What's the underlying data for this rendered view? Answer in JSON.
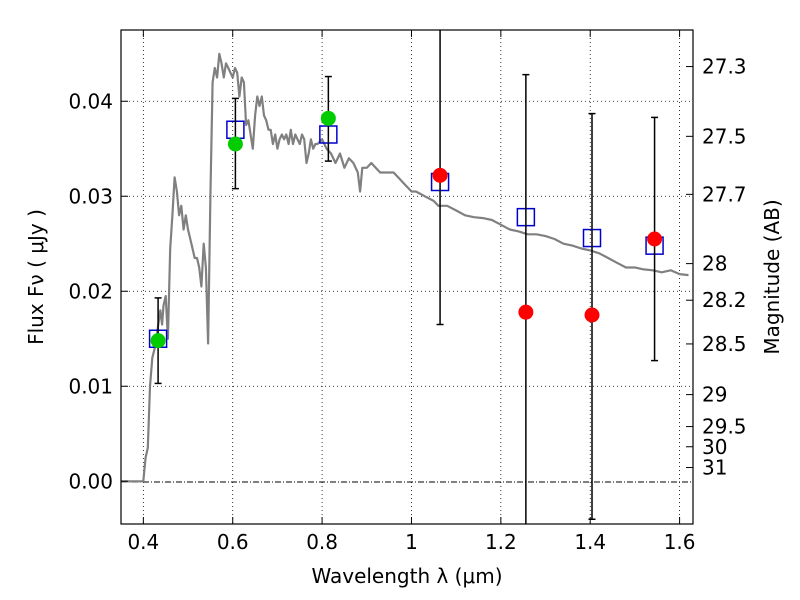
{
  "chart_data": {
    "type": "scatter",
    "xlabel": "Wavelength  λ (μm)",
    "ylabel_left": "Flux  Fν  ( μJy )",
    "ylabel_right": "Magnitude (AB)",
    "xlim": [
      0.35,
      1.63
    ],
    "ylim": [
      -0.0045,
      0.0475
    ],
    "xticks": [
      {
        "value": 0.4,
        "label": "0.4"
      },
      {
        "value": 0.6,
        "label": "0.6"
      },
      {
        "value": 0.8,
        "label": "0.8"
      },
      {
        "value": 1.0,
        "label": "1"
      },
      {
        "value": 1.2,
        "label": "1.2"
      },
      {
        "value": 1.4,
        "label": "1.4"
      },
      {
        "value": 1.6,
        "label": "1.6"
      }
    ],
    "yticks": [
      {
        "value": 0.0,
        "label": "0.00"
      },
      {
        "value": 0.01,
        "label": "0.01"
      },
      {
        "value": 0.02,
        "label": "0.02"
      },
      {
        "value": 0.03,
        "label": "0.03"
      },
      {
        "value": 0.04,
        "label": "0.04"
      }
    ],
    "mag_ticks": [
      {
        "value": 27.3,
        "label": "27.3"
      },
      {
        "value": 27.5,
        "label": "27.5"
      },
      {
        "value": 27.7,
        "label": "27.7"
      },
      {
        "value": 28,
        "label": "28"
      },
      {
        "value": 28.2,
        "label": "28.2"
      },
      {
        "value": 28.5,
        "label": "28.5"
      },
      {
        "value": 29,
        "label": "29"
      },
      {
        "value": 29.5,
        "label": "29.5"
      },
      {
        "value": 30,
        "label": "30"
      },
      {
        "value": 31,
        "label": "31"
      }
    ],
    "grid": true,
    "model_spectrum": {
      "color": "#808080",
      "points": [
        [
          0.35,
          0.0
        ],
        [
          0.4,
          0.0
        ],
        [
          0.405,
          0.0025
        ],
        [
          0.41,
          0.0035
        ],
        [
          0.415,
          0.01
        ],
        [
          0.42,
          0.013
        ],
        [
          0.428,
          0.0145
        ],
        [
          0.432,
          0.016
        ],
        [
          0.438,
          0.018
        ],
        [
          0.442,
          0.0165
        ],
        [
          0.445,
          0.0185
        ],
        [
          0.45,
          0.0195
        ],
        [
          0.455,
          0.015
        ],
        [
          0.46,
          0.0245
        ],
        [
          0.465,
          0.028
        ],
        [
          0.47,
          0.032
        ],
        [
          0.475,
          0.0305
        ],
        [
          0.48,
          0.028
        ],
        [
          0.485,
          0.029
        ],
        [
          0.49,
          0.0265
        ],
        [
          0.495,
          0.028
        ],
        [
          0.5,
          0.0265
        ],
        [
          0.505,
          0.0255
        ],
        [
          0.51,
          0.0245
        ],
        [
          0.515,
          0.0235
        ],
        [
          0.52,
          0.0235
        ],
        [
          0.525,
          0.0225
        ],
        [
          0.53,
          0.0205
        ],
        [
          0.535,
          0.025
        ],
        [
          0.54,
          0.0225
        ],
        [
          0.545,
          0.0145
        ],
        [
          0.55,
          0.03
        ],
        [
          0.555,
          0.042
        ],
        [
          0.56,
          0.0435
        ],
        [
          0.565,
          0.0425
        ],
        [
          0.57,
          0.045
        ],
        [
          0.575,
          0.044
        ],
        [
          0.58,
          0.0425
        ],
        [
          0.585,
          0.044
        ],
        [
          0.59,
          0.0435
        ],
        [
          0.595,
          0.043
        ],
        [
          0.6,
          0.0425
        ],
        [
          0.605,
          0.0435
        ],
        [
          0.61,
          0.043
        ],
        [
          0.615,
          0.0405
        ],
        [
          0.62,
          0.0425
        ],
        [
          0.625,
          0.042
        ],
        [
          0.63,
          0.0375
        ],
        [
          0.635,
          0.038
        ],
        [
          0.64,
          0.0365
        ],
        [
          0.645,
          0.035
        ],
        [
          0.65,
          0.0385
        ],
        [
          0.655,
          0.0405
        ],
        [
          0.66,
          0.0395
        ],
        [
          0.665,
          0.0405
        ],
        [
          0.67,
          0.0385
        ],
        [
          0.675,
          0.038
        ],
        [
          0.68,
          0.037
        ],
        [
          0.685,
          0.037
        ],
        [
          0.69,
          0.0355
        ],
        [
          0.695,
          0.0365
        ],
        [
          0.7,
          0.035
        ],
        [
          0.705,
          0.036
        ],
        [
          0.71,
          0.0365
        ],
        [
          0.715,
          0.036
        ],
        [
          0.72,
          0.0365
        ],
        [
          0.725,
          0.0355
        ],
        [
          0.73,
          0.037
        ],
        [
          0.735,
          0.0355
        ],
        [
          0.74,
          0.0365
        ],
        [
          0.745,
          0.036
        ],
        [
          0.75,
          0.0355
        ],
        [
          0.755,
          0.0365
        ],
        [
          0.76,
          0.036
        ],
        [
          0.765,
          0.0335
        ],
        [
          0.77,
          0.0345
        ],
        [
          0.775,
          0.036
        ],
        [
          0.78,
          0.035
        ],
        [
          0.785,
          0.0355
        ],
        [
          0.79,
          0.0355
        ],
        [
          0.8,
          0.036
        ],
        [
          0.81,
          0.035
        ],
        [
          0.82,
          0.0345
        ],
        [
          0.83,
          0.0335
        ],
        [
          0.84,
          0.0345
        ],
        [
          0.85,
          0.033
        ],
        [
          0.86,
          0.034
        ],
        [
          0.87,
          0.0335
        ],
        [
          0.88,
          0.0325
        ],
        [
          0.885,
          0.0305
        ],
        [
          0.89,
          0.033
        ],
        [
          0.9,
          0.033
        ],
        [
          0.91,
          0.0335
        ],
        [
          0.92,
          0.033
        ],
        [
          0.93,
          0.0325
        ],
        [
          0.94,
          0.0325
        ],
        [
          0.95,
          0.0325
        ],
        [
          0.96,
          0.0325
        ],
        [
          0.97,
          0.032
        ],
        [
          0.98,
          0.0315
        ],
        [
          0.99,
          0.031
        ],
        [
          1.0,
          0.0305
        ],
        [
          1.01,
          0.0305
        ],
        [
          1.03,
          0.03
        ],
        [
          1.05,
          0.0295
        ],
        [
          1.06,
          0.029
        ],
        [
          1.08,
          0.029
        ],
        [
          1.1,
          0.0285
        ],
        [
          1.12,
          0.028
        ],
        [
          1.14,
          0.0278
        ],
        [
          1.16,
          0.0277
        ],
        [
          1.18,
          0.0275
        ],
        [
          1.2,
          0.027
        ],
        [
          1.22,
          0.0265
        ],
        [
          1.24,
          0.0263
        ],
        [
          1.26,
          0.026
        ],
        [
          1.28,
          0.026
        ],
        [
          1.3,
          0.0258
        ],
        [
          1.32,
          0.0255
        ],
        [
          1.34,
          0.025
        ],
        [
          1.36,
          0.0248
        ],
        [
          1.38,
          0.0245
        ],
        [
          1.4,
          0.0243
        ],
        [
          1.42,
          0.024
        ],
        [
          1.44,
          0.0235
        ],
        [
          1.46,
          0.023
        ],
        [
          1.48,
          0.0225
        ],
        [
          1.5,
          0.0225
        ],
        [
          1.52,
          0.0223
        ],
        [
          1.54,
          0.0222
        ],
        [
          1.56,
          0.022
        ],
        [
          1.58,
          0.0222
        ],
        [
          1.6,
          0.0218
        ],
        [
          1.62,
          0.0217
        ]
      ]
    },
    "model_fluxes": {
      "marker": "open-square",
      "color": "#0000cc",
      "points": [
        {
          "x": 0.433,
          "y": 0.015
        },
        {
          "x": 0.606,
          "y": 0.037
        },
        {
          "x": 0.814,
          "y": 0.0365
        },
        {
          "x": 1.064,
          "y": 0.0315
        },
        {
          "x": 1.256,
          "y": 0.0278
        },
        {
          "x": 1.404,
          "y": 0.0256
        },
        {
          "x": 1.544,
          "y": 0.0248
        }
      ]
    },
    "observed": {
      "points": [
        {
          "x": 0.433,
          "y": 0.0148,
          "err_lo": 0.0103,
          "err_hi": 0.0193,
          "color": "#00cc00"
        },
        {
          "x": 0.606,
          "y": 0.0355,
          "err_lo": 0.0308,
          "err_hi": 0.0403,
          "color": "#00cc00"
        },
        {
          "x": 0.814,
          "y": 0.0382,
          "err_lo": 0.0337,
          "err_hi": 0.0426,
          "color": "#00cc00"
        },
        {
          "x": 1.064,
          "y": 0.0322,
          "err_lo": 0.0165,
          "err_hi": 0.0475,
          "color": "#ff0000"
        },
        {
          "x": 1.256,
          "y": 0.0178,
          "err_lo": -0.0045,
          "err_hi": 0.0428,
          "color": "#ff0000"
        },
        {
          "x": 1.404,
          "y": 0.0175,
          "err_lo": -0.004,
          "err_hi": 0.0387,
          "color": "#ff0000"
        },
        {
          "x": 1.544,
          "y": 0.0255,
          "err_lo": 0.0127,
          "err_hi": 0.0383,
          "color": "#ff0000"
        }
      ]
    }
  }
}
